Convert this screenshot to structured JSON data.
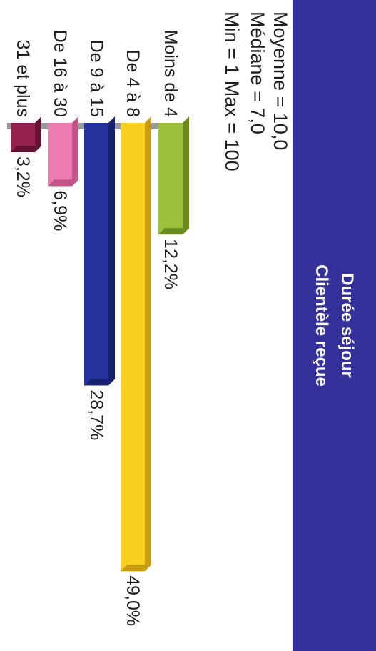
{
  "header": {
    "title_line1": "Durée séjour",
    "title_line2": "Clientèle reçue"
  },
  "stats": {
    "mean": "Moyenne = 10,0",
    "median": "Médiane = 7,0",
    "minmax": "Min = 1   Max = 100"
  },
  "chart_data": {
    "type": "bar",
    "orientation": "horizontal",
    "categories": [
      "Moins de 4",
      "De 4 à 8",
      "De 9 à 15",
      "De 16 à 30",
      "31 et plus"
    ],
    "values": [
      12.2,
      49.0,
      28.7,
      6.9,
      3.2
    ],
    "value_labels": [
      "12,2%",
      "49,0%",
      "28,7%",
      "6,9%",
      "3,2%"
    ],
    "unit": "%",
    "colors": [
      "#9cc23c",
      "#f7cf1c",
      "#26339e",
      "#ee7bb1",
      "#96214f"
    ],
    "side_colors": [
      "#6a8c1e",
      "#c99b10",
      "#17216e",
      "#c25288",
      "#661232"
    ],
    "grid": false,
    "legend": "none"
  }
}
